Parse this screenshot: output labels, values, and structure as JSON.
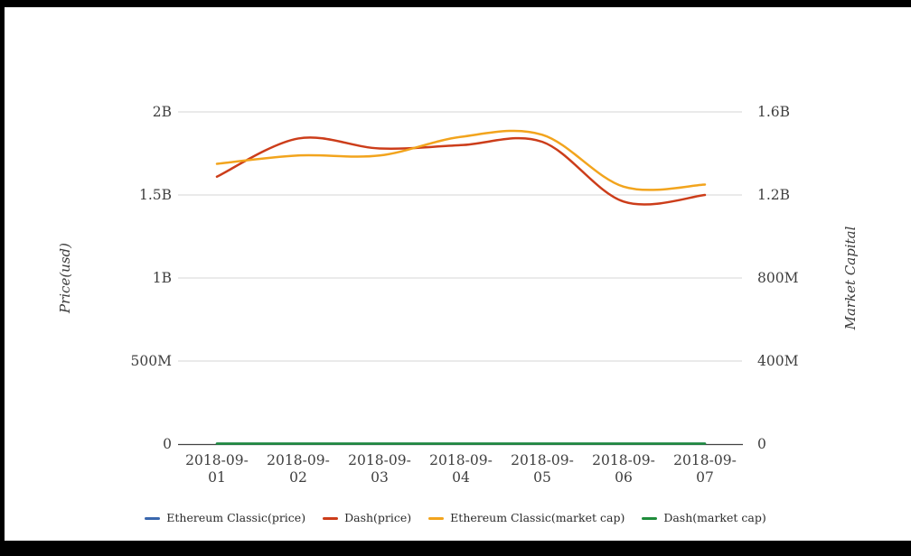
{
  "chart_data": {
    "type": "line",
    "title": "",
    "x": [
      "2018-09-01",
      "2018-09-02",
      "2018-09-03",
      "2018-09-04",
      "2018-09-05",
      "2018-09-06",
      "2018-09-07"
    ],
    "series": [
      {
        "name": "Ethereum Classic(price)",
        "axis": "left",
        "color": "#3A67AD",
        "values": [
          12.6,
          12.4,
          12.5,
          12.9,
          12.8,
          11.2,
          11.4
        ]
      },
      {
        "name": "Dash(price)",
        "axis": "left",
        "color": "#CC3D1A",
        "values": [
          1610000000,
          1840000000,
          1780000000,
          1800000000,
          1820000000,
          1460000000,
          1500000000
        ]
      },
      {
        "name": "Ethereum Classic(market cap)",
        "axis": "right",
        "color": "#F2A41D",
        "values": [
          1350000000,
          1390000000,
          1390000000,
          1480000000,
          1490000000,
          1240000000,
          1250000000
        ]
      },
      {
        "name": "Dash(market cap)",
        "axis": "right",
        "color": "#1F8C3B",
        "values": [
          190,
          196,
          193,
          198,
          195,
          168,
          172
        ]
      }
    ],
    "left_axis": {
      "label": "Price(usd)",
      "ticks": [
        "0",
        "500M",
        "1B",
        "1.5B",
        "2B"
      ],
      "range": [
        0,
        2000000000
      ]
    },
    "right_axis": {
      "label": "Market Capital",
      "ticks": [
        "0",
        "400M",
        "800M",
        "1.2B",
        "1.6B"
      ],
      "range": [
        0,
        1600000000
      ]
    },
    "legend_position": "bottom",
    "grid": true,
    "colors": {
      "gridline": "#D6D6D6",
      "axis_line": "#424242",
      "tick_text": "#3f3f3f"
    }
  }
}
